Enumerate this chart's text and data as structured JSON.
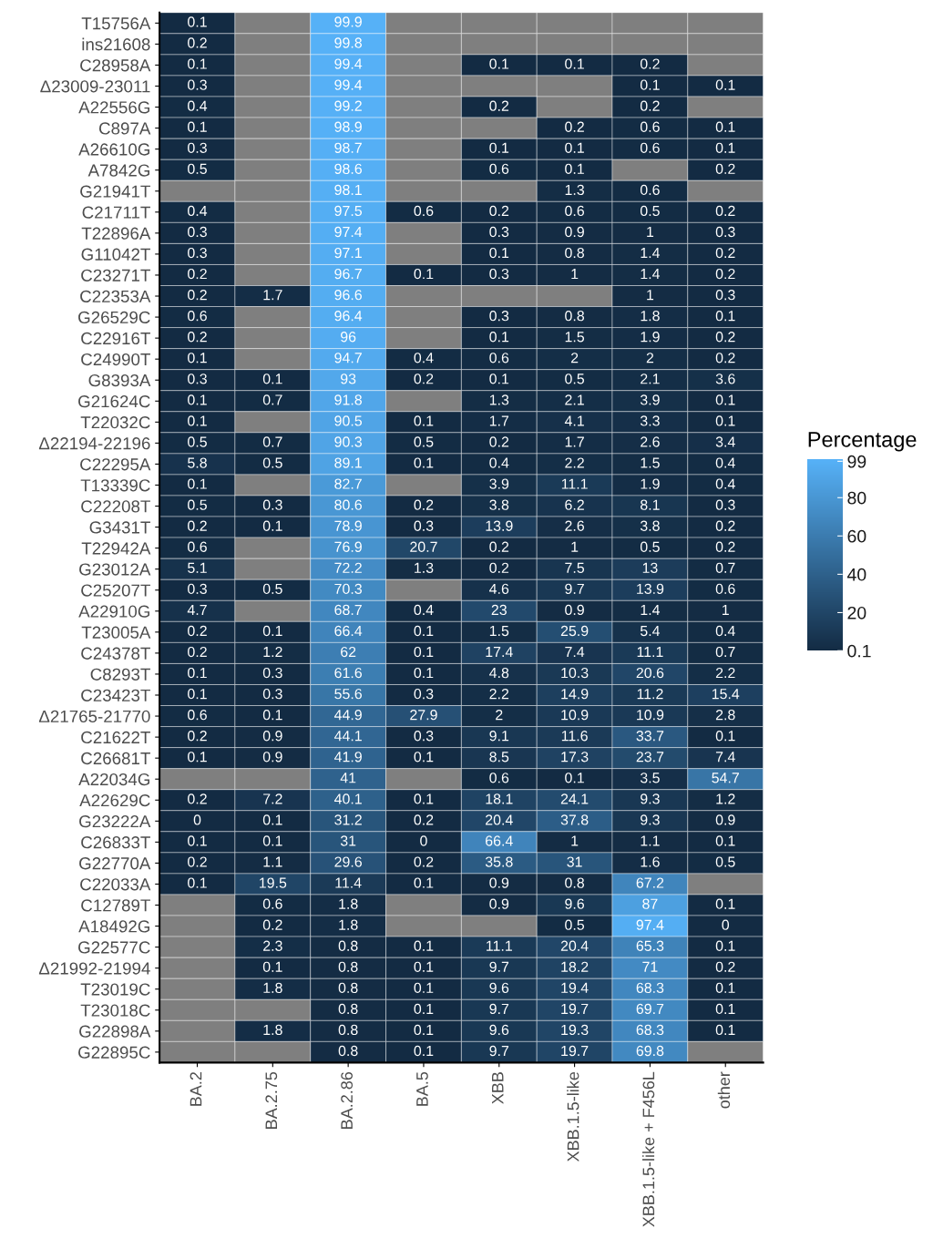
{
  "chart_data": {
    "type": "heatmap",
    "clabel": "Percentage",
    "categories": [
      "BA.2",
      "BA.2.75",
      "BA.2.86",
      "BA.5",
      "XBB",
      "XBB.1.5-like",
      "XBB.1.5-like + F456L",
      "other"
    ],
    "y_categories": [
      "T15756A",
      "ins21608",
      "C28958A",
      "Δ23009-23011",
      "A22556G",
      "C897A",
      "A26610G",
      "A7842G",
      "G21941T",
      "C21711T",
      "T22896A",
      "G11042T",
      "C23271T",
      "C22353A",
      "G26529C",
      "C22916T",
      "C24990T",
      "G8393A",
      "G21624C",
      "T22032C",
      "Δ22194-22196",
      "C22295A",
      "T13339C",
      "C22208T",
      "G3431T",
      "T22942A",
      "G23012A",
      "C25207T",
      "A22910G",
      "T23005A",
      "C24378T",
      "C8293T",
      "C23423T",
      "Δ21765-21770",
      "C21622T",
      "C26681T",
      "A22034G",
      "A22629C",
      "G23222A",
      "C26833T",
      "G22770A",
      "C22033A",
      "C12789T",
      "A18492G",
      "G22577C",
      "Δ21992-21994",
      "T23019C",
      "T23018C",
      "G22898A",
      "G22895C"
    ],
    "cells": [
      [
        0.1,
        null,
        99.9,
        null,
        null,
        null,
        null,
        null
      ],
      [
        0.2,
        null,
        99.8,
        null,
        null,
        null,
        null,
        null
      ],
      [
        0.1,
        null,
        99.4,
        null,
        0.1,
        0.1,
        0.2,
        null
      ],
      [
        0.3,
        null,
        99.4,
        null,
        null,
        null,
        0.1,
        0.1
      ],
      [
        0.4,
        null,
        99.2,
        null,
        0.2,
        null,
        0.2,
        null
      ],
      [
        0.1,
        null,
        98.9,
        null,
        null,
        0.2,
        0.6,
        0.1
      ],
      [
        0.3,
        null,
        98.7,
        null,
        0.1,
        0.1,
        0.6,
        0.1
      ],
      [
        0.5,
        null,
        98.6,
        null,
        0.6,
        0.1,
        null,
        0.2
      ],
      [
        null,
        null,
        98.1,
        null,
        null,
        1.3,
        0.6,
        null
      ],
      [
        0.4,
        null,
        97.5,
        0.6,
        0.2,
        0.6,
        0.5,
        0.2
      ],
      [
        0.3,
        null,
        97.4,
        null,
        0.3,
        0.9,
        1,
        0.3
      ],
      [
        0.3,
        null,
        97.1,
        null,
        0.1,
        0.8,
        1.4,
        0.2
      ],
      [
        0.2,
        null,
        96.7,
        0.1,
        0.3,
        1,
        1.4,
        0.2
      ],
      [
        0.2,
        1.7,
        96.6,
        null,
        null,
        null,
        1,
        0.3
      ],
      [
        0.6,
        null,
        96.4,
        null,
        0.3,
        0.8,
        1.8,
        0.1
      ],
      [
        0.2,
        null,
        96,
        null,
        0.1,
        1.5,
        1.9,
        0.2
      ],
      [
        0.1,
        null,
        94.7,
        0.4,
        0.6,
        2,
        2,
        0.2
      ],
      [
        0.3,
        0.1,
        93,
        0.2,
        0.1,
        0.5,
        2.1,
        3.6
      ],
      [
        0.1,
        0.7,
        91.8,
        null,
        1.3,
        2.1,
        3.9,
        0.1
      ],
      [
        0.1,
        null,
        90.5,
        0.1,
        1.7,
        4.1,
        3.3,
        0.1
      ],
      [
        0.5,
        0.7,
        90.3,
        0.5,
        0.2,
        1.7,
        2.6,
        3.4
      ],
      [
        5.8,
        0.5,
        89.1,
        0.1,
        0.4,
        2.2,
        1.5,
        0.4
      ],
      [
        0.1,
        null,
        82.7,
        null,
        3.9,
        11.1,
        1.9,
        0.4
      ],
      [
        0.5,
        0.3,
        80.6,
        0.2,
        3.8,
        6.2,
        8.1,
        0.3
      ],
      [
        0.2,
        0.1,
        78.9,
        0.3,
        13.9,
        2.6,
        3.8,
        0.2
      ],
      [
        0.6,
        null,
        76.9,
        20.7,
        0.2,
        1,
        0.5,
        0.2
      ],
      [
        5.1,
        null,
        72.2,
        1.3,
        0.2,
        7.5,
        13,
        0.7
      ],
      [
        0.3,
        0.5,
        70.3,
        null,
        4.6,
        9.7,
        13.9,
        0.6
      ],
      [
        4.7,
        null,
        68.7,
        0.4,
        23,
        0.9,
        1.4,
        1
      ],
      [
        0.2,
        0.1,
        66.4,
        0.1,
        1.5,
        25.9,
        5.4,
        0.4
      ],
      [
        0.2,
        1.2,
        62,
        0.1,
        17.4,
        7.4,
        11.1,
        0.7
      ],
      [
        0.1,
        0.3,
        61.6,
        0.1,
        4.8,
        10.3,
        20.6,
        2.2
      ],
      [
        0.1,
        0.3,
        55.6,
        0.3,
        2.2,
        14.9,
        11.2,
        15.4
      ],
      [
        0.6,
        0.1,
        44.9,
        27.9,
        2,
        10.9,
        10.9,
        2.8
      ],
      [
        0.2,
        0.9,
        44.1,
        0.3,
        9.1,
        11.6,
        33.7,
        0.1
      ],
      [
        0.1,
        0.9,
        41.9,
        0.1,
        8.5,
        17.3,
        23.7,
        7.4
      ],
      [
        null,
        null,
        41,
        null,
        0.6,
        0.1,
        3.5,
        54.7
      ],
      [
        0.2,
        7.2,
        40.1,
        0.1,
        18.1,
        24.1,
        9.3,
        1.2
      ],
      [
        0,
        0.1,
        31.2,
        0.2,
        20.4,
        37.8,
        9.3,
        0.9
      ],
      [
        0.1,
        0.1,
        31,
        0,
        66.4,
        1,
        1.1,
        0.1
      ],
      [
        0.2,
        1.1,
        29.6,
        0.2,
        35.8,
        31,
        1.6,
        0.5
      ],
      [
        0.1,
        19.5,
        11.4,
        0.1,
        0.9,
        0.8,
        67.2,
        null
      ],
      [
        null,
        0.6,
        1.8,
        null,
        0.9,
        9.6,
        87,
        0.1
      ],
      [
        null,
        0.2,
        1.8,
        null,
        null,
        0.5,
        97.4,
        0
      ],
      [
        null,
        2.3,
        0.8,
        0.1,
        11.1,
        20.4,
        65.3,
        0.1
      ],
      [
        null,
        0.1,
        0.8,
        0.1,
        9.7,
        18.2,
        71,
        0.2
      ],
      [
        null,
        1.8,
        0.8,
        0.1,
        9.6,
        19.4,
        68.3,
        0.1
      ],
      [
        null,
        null,
        0.8,
        0.1,
        9.7,
        19.7,
        69.7,
        0.1
      ],
      [
        null,
        1.8,
        0.8,
        0.1,
        9.6,
        19.3,
        68.3,
        0.1
      ],
      [
        null,
        null,
        0.8,
        0.1,
        9.7,
        19.7,
        69.8,
        null
      ]
    ],
    "clim": [
      0,
      99.9
    ],
    "cticks": [
      0.1,
      20,
      40,
      60,
      80,
      99
    ],
    "colors": [
      "#132b43",
      "#56b1f7"
    ],
    "data_labels": true
  }
}
